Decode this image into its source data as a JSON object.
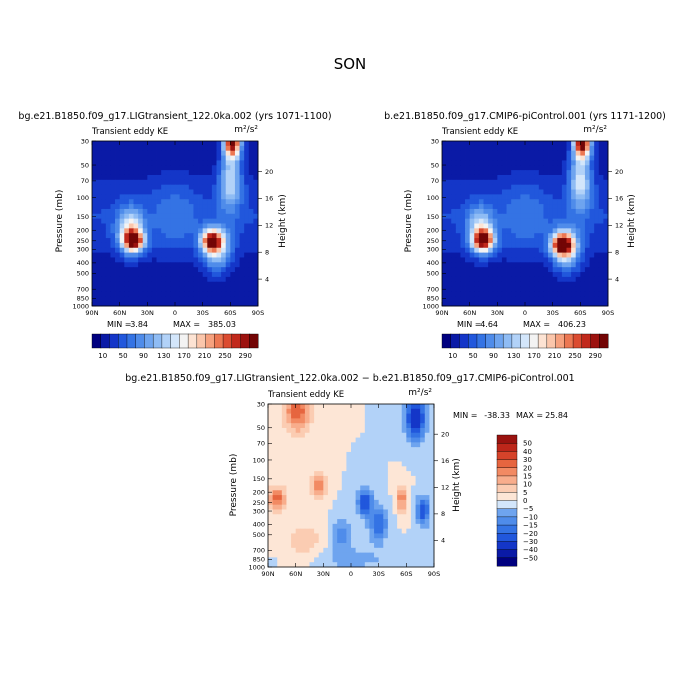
{
  "figure": {
    "title": "SON"
  },
  "colors": {
    "panel_palette": [
      "#00007f",
      "#0a1aa6",
      "#1436c8",
      "#2157dc",
      "#3473e4",
      "#4f8cea",
      "#6ea4ef",
      "#8fbcf4",
      "#b2d2f8",
      "#d3e6fb",
      "#f3f3f3",
      "#fde3d3",
      "#fbc6ab",
      "#f6a17e",
      "#ec7752",
      "#db4b30",
      "#c1281b",
      "#9c120f",
      "#730505"
    ],
    "diff_palette": [
      "#00007f",
      "#0a1aa6",
      "#1436c8",
      "#2157dc",
      "#3473e4",
      "#4f8cea",
      "#6ea4ef",
      "#8fbcf4",
      "#b2d2f8",
      "#d3e6fb",
      "#fde6d6",
      "#fbccb2",
      "#f8ad8c",
      "#f28a63",
      "#e6653f",
      "#d6432a",
      "#bd261a",
      "#9a120f",
      "#730505"
    ]
  },
  "chart_data": [
    {
      "type": "heatmap",
      "title": "bg.e21.B1850.f09_g17.LIGtransient_122.0ka.002 (yrs 1071-1100)",
      "subtitle": "Transient eddy KE",
      "units": "m²/s²",
      "ylabel": "Pressure (mb)",
      "ylabel_right": "Height (km)",
      "x_ticks": [
        "90N",
        "60N",
        "30N",
        "0",
        "30S",
        "60S",
        "90S"
      ],
      "y_ticks": [
        "30",
        "50",
        "70",
        "100",
        "150",
        "200",
        "250",
        "300",
        "400",
        "500",
        "700",
        "850",
        "1000"
      ],
      "height_ticks": [
        "4",
        "8",
        "12",
        "16",
        "20"
      ],
      "min_label": "MIN =",
      "min_value": "3.84",
      "max_label": "MAX =",
      "max_value": "385.03",
      "colorbar_labels": [
        "10",
        "50",
        "90",
        "130",
        "170",
        "210",
        "250",
        "290"
      ],
      "features": [
        {
          "lat": 45,
          "p": 250,
          "value": 300,
          "sx": 11,
          "sy": 0.22
        },
        {
          "lat": 48,
          "p": 200,
          "value": 180,
          "sx": 14,
          "sy": 0.45
        },
        {
          "lat": -40,
          "p": 250,
          "value": 280,
          "sx": 11,
          "sy": 0.22
        },
        {
          "lat": -45,
          "p": 300,
          "value": 170,
          "sx": 15,
          "sy": 0.45
        },
        {
          "lat": -62,
          "p": 30,
          "value": 380,
          "sx": 9,
          "sy": 0.35
        },
        {
          "lat": -60,
          "p": 70,
          "value": 160,
          "sx": 12,
          "sy": 0.6
        },
        {
          "lat": 0,
          "p": 150,
          "value": 60,
          "sx": 25,
          "sy": 0.8
        }
      ]
    },
    {
      "type": "heatmap",
      "title": "b.e21.B1850.f09_g17.CMIP6-piControl.001 (yrs 1171-1200)",
      "subtitle": "Transient eddy KE",
      "units": "m²/s²",
      "ylabel": "Pressure (mb)",
      "ylabel_right": "Height (km)",
      "x_ticks": [
        "90N",
        "60N",
        "30N",
        "0",
        "30S",
        "60S",
        "90S"
      ],
      "y_ticks": [
        "30",
        "50",
        "70",
        "100",
        "150",
        "200",
        "250",
        "300",
        "400",
        "500",
        "700",
        "850",
        "1000"
      ],
      "height_ticks": [
        "4",
        "8",
        "12",
        "16",
        "20"
      ],
      "min_label": "MIN =",
      "min_value": "4.64",
      "max_label": "MAX =",
      "max_value": "406.23",
      "colorbar_labels": [
        "10",
        "50",
        "90",
        "130",
        "170",
        "210",
        "250",
        "290"
      ],
      "features": [
        {
          "lat": 45,
          "p": 250,
          "value": 290,
          "sx": 11,
          "sy": 0.22
        },
        {
          "lat": 48,
          "p": 200,
          "value": 170,
          "sx": 14,
          "sy": 0.45
        },
        {
          "lat": -40,
          "p": 270,
          "value": 300,
          "sx": 11,
          "sy": 0.22
        },
        {
          "lat": -45,
          "p": 300,
          "value": 180,
          "sx": 15,
          "sy": 0.45
        },
        {
          "lat": -62,
          "p": 30,
          "value": 400,
          "sx": 9,
          "sy": 0.35
        },
        {
          "lat": -60,
          "p": 70,
          "value": 170,
          "sx": 12,
          "sy": 0.6
        },
        {
          "lat": 0,
          "p": 150,
          "value": 60,
          "sx": 25,
          "sy": 0.8
        }
      ]
    },
    {
      "type": "heatmap",
      "title": "bg.e21.B1850.f09_g17.LIGtransient_122.0ka.002 − b.e21.B1850.f09_g17.CMIP6-piControl.001",
      "subtitle": "Transient eddy KE",
      "units": "m²/s²",
      "ylabel": "Pressure (mb)",
      "ylabel_right": "Height (km)",
      "x_ticks": [
        "90N",
        "60N",
        "30N",
        "0",
        "30S",
        "60S",
        "90S"
      ],
      "y_ticks": [
        "30",
        "50",
        "70",
        "100",
        "150",
        "200",
        "250",
        "300",
        "400",
        "500",
        "700",
        "850",
        "1000"
      ],
      "height_ticks": [
        "4",
        "8",
        "12",
        "16",
        "20"
      ],
      "min_label": "MIN =",
      "min_value": "-38.33",
      "max_label": "MAX =",
      "max_value": "25.84",
      "colorbar_labels": [
        "50",
        "40",
        "30",
        "20",
        "15",
        "10",
        "5",
        "0",
        "−5",
        "−10",
        "−15",
        "−20",
        "−30",
        "−40",
        "−50"
      ],
      "features": [
        {
          "lat": 58,
          "p": 35,
          "value": 24,
          "sx": 14,
          "sy": 0.45
        },
        {
          "lat": 80,
          "p": 230,
          "value": 22,
          "sx": 10,
          "sy": 0.25
        },
        {
          "lat": 35,
          "p": 170,
          "value": 18,
          "sx": 8,
          "sy": 0.3
        },
        {
          "lat": 50,
          "p": 600,
          "value": 8,
          "sx": 25,
          "sy": 0.5
        },
        {
          "lat": -15,
          "p": 250,
          "value": -26,
          "sx": 8,
          "sy": 0.3
        },
        {
          "lat": -70,
          "p": 40,
          "value": -38,
          "sx": 10,
          "sy": 0.45
        },
        {
          "lat": -78,
          "p": 300,
          "value": -25,
          "sx": 7,
          "sy": 0.3
        },
        {
          "lat": -55,
          "p": 230,
          "value": 18,
          "sx": 6,
          "sy": 0.3
        },
        {
          "lat": -30,
          "p": 400,
          "value": -20,
          "sx": 10,
          "sy": 0.35
        },
        {
          "lat": 10,
          "p": 500,
          "value": -12,
          "sx": 12,
          "sy": 0.35
        },
        {
          "lat": 0,
          "p": 850,
          "value": -6,
          "sx": 60,
          "sy": 0.3
        }
      ]
    }
  ]
}
